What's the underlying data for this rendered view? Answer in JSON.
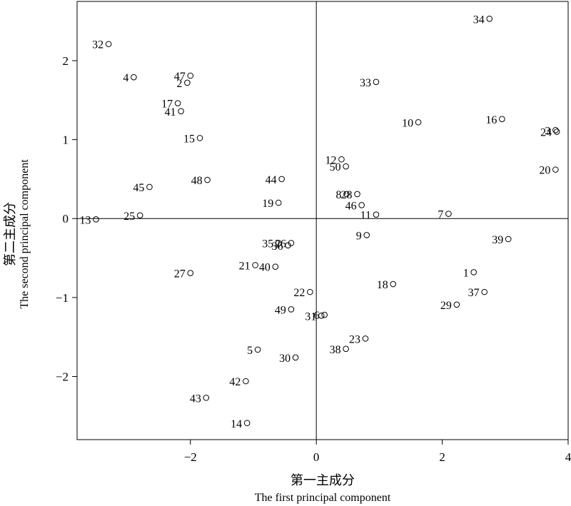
{
  "chart_data": {
    "type": "scatter",
    "title": "",
    "xlabel": "第一主成分",
    "xlabel_en": "The first principal component",
    "ylabel": "第二主成分",
    "ylabel_en": "The second principal component",
    "xlim": [
      -3.8,
      4.0
    ],
    "ylim": [
      -2.8,
      2.75
    ],
    "xticks": [
      -2,
      0,
      2,
      4
    ],
    "xtick_labels": [
      "−2",
      "0",
      "2",
      "4"
    ],
    "yticks": [
      -2,
      -1,
      0,
      1,
      2
    ],
    "ytick_labels": [
      "−2",
      "−1",
      "0",
      "1",
      "2"
    ],
    "reference_lines": {
      "x": 0,
      "y": 0
    },
    "grid": false,
    "legend": "none",
    "marker": "open-circle",
    "points": [
      {
        "label": "1",
        "x": 2.5,
        "y": -0.68
      },
      {
        "label": "2",
        "x": -2.05,
        "y": 1.72
      },
      {
        "label": "3",
        "x": 3.8,
        "y": 1.12
      },
      {
        "label": "4",
        "x": -2.9,
        "y": 1.79
      },
      {
        "label": "5",
        "x": -0.93,
        "y": -1.66
      },
      {
        "label": "6",
        "x": 0.13,
        "y": -1.22
      },
      {
        "label": "7",
        "x": 2.1,
        "y": 0.06
      },
      {
        "label": "8",
        "x": 0.48,
        "y": 0.31
      },
      {
        "label": "9",
        "x": 0.8,
        "y": -0.21
      },
      {
        "label": "10",
        "x": 1.62,
        "y": 1.22
      },
      {
        "label": "11",
        "x": 0.95,
        "y": 0.05
      },
      {
        "label": "12",
        "x": 0.4,
        "y": 0.75
      },
      {
        "label": "13",
        "x": -3.5,
        "y": -0.01
      },
      {
        "label": "14",
        "x": -1.1,
        "y": -2.59
      },
      {
        "label": "15",
        "x": -1.85,
        "y": 1.02
      },
      {
        "label": "16",
        "x": 2.95,
        "y": 1.26
      },
      {
        "label": "17",
        "x": -2.2,
        "y": 1.46
      },
      {
        "label": "18",
        "x": 1.22,
        "y": -0.83
      },
      {
        "label": "19",
        "x": -0.6,
        "y": 0.2
      },
      {
        "label": "20",
        "x": 3.8,
        "y": 0.62
      },
      {
        "label": "21",
        "x": -0.97,
        "y": -0.59
      },
      {
        "label": "22",
        "x": -0.1,
        "y": -0.93
      },
      {
        "label": "23",
        "x": 0.78,
        "y": -1.52
      },
      {
        "label": "24",
        "x": 3.82,
        "y": 1.1
      },
      {
        "label": "25",
        "x": -2.8,
        "y": 0.04
      },
      {
        "label": "26",
        "x": -0.4,
        "y": -0.31
      },
      {
        "label": "27",
        "x": -2.0,
        "y": -0.69
      },
      {
        "label": "28",
        "x": 0.65,
        "y": 0.31
      },
      {
        "label": "29",
        "x": 2.23,
        "y": -1.09
      },
      {
        "label": "30",
        "x": -0.33,
        "y": -1.76
      },
      {
        "label": "31",
        "x": 0.08,
        "y": -1.23
      },
      {
        "label": "32",
        "x": -3.3,
        "y": 2.21
      },
      {
        "label": "33",
        "x": 0.95,
        "y": 1.73
      },
      {
        "label": "34",
        "x": 2.75,
        "y": 2.53
      },
      {
        "label": "35",
        "x": -0.6,
        "y": -0.31
      },
      {
        "label": "36",
        "x": -0.45,
        "y": -0.34
      },
      {
        "label": "37",
        "x": 2.67,
        "y": -0.93
      },
      {
        "label": "38",
        "x": 0.47,
        "y": -1.65
      },
      {
        "label": "39",
        "x": 3.05,
        "y": -0.26
      },
      {
        "label": "40",
        "x": -0.65,
        "y": -0.61
      },
      {
        "label": "41",
        "x": -2.15,
        "y": 1.36
      },
      {
        "label": "42",
        "x": -1.12,
        "y": -2.06
      },
      {
        "label": "43",
        "x": -1.75,
        "y": -2.27
      },
      {
        "label": "44",
        "x": -0.55,
        "y": 0.5
      },
      {
        "label": "45",
        "x": -2.65,
        "y": 0.4
      },
      {
        "label": "46",
        "x": 0.72,
        "y": 0.17
      },
      {
        "label": "47",
        "x": -2.0,
        "y": 1.81
      },
      {
        "label": "48",
        "x": -1.73,
        "y": 0.49
      },
      {
        "label": "49",
        "x": -0.4,
        "y": -1.15
      },
      {
        "label": "50",
        "x": 0.47,
        "y": 0.66
      }
    ]
  }
}
